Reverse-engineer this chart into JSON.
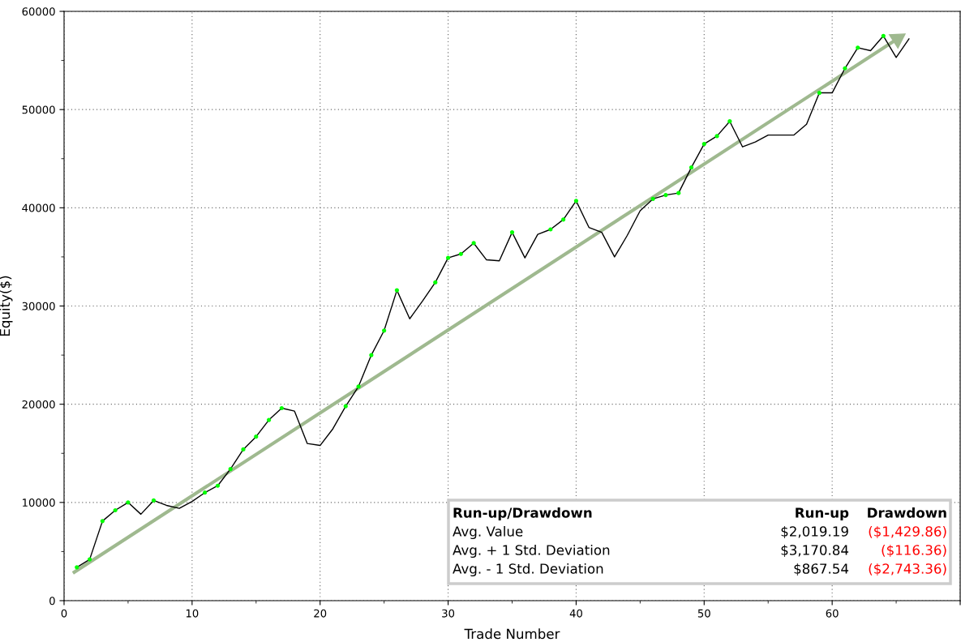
{
  "chart_data": {
    "type": "line",
    "xlabel": "Trade Number",
    "ylabel": "Equity($)",
    "xlim": [
      0,
      70
    ],
    "xticks": [
      0,
      10,
      20,
      30,
      40,
      50,
      60,
      {
        "value": 70,
        "label": null
      }
    ],
    "ylim": [
      0,
      60000
    ],
    "yticks": [
      0,
      10000,
      20000,
      30000,
      40000,
      50000,
      60000
    ],
    "grid": true,
    "legend": false,
    "marker": "none",
    "line_style": "solid",
    "series": [
      {
        "color": "#000000",
        "x": [
          1,
          2,
          3,
          4,
          5,
          6,
          7,
          8,
          9,
          10,
          11,
          12,
          13,
          14,
          15,
          16,
          17,
          18,
          19,
          20,
          21,
          22,
          23,
          24,
          25,
          26,
          27,
          28,
          29,
          30,
          31,
          32,
          33,
          34,
          35,
          36,
          37,
          38,
          39,
          40,
          41,
          42,
          43,
          44,
          45,
          46,
          47,
          48,
          49,
          50,
          51,
          52,
          53,
          54,
          55,
          56,
          57,
          58,
          59,
          60,
          61,
          62,
          63,
          64,
          65,
          66
        ],
        "values": [
          3400,
          4200,
          8100,
          9200,
          10000,
          8800,
          10200,
          9700,
          9400,
          10100,
          11000,
          11700,
          13400,
          15400,
          16700,
          18400,
          19600,
          19300,
          16000,
          15800,
          17500,
          19800,
          21800,
          25000,
          27500,
          31600,
          28700,
          30500,
          32400,
          34900,
          35300,
          36400,
          34700,
          34600,
          37500,
          34900,
          37300,
          37800,
          38800,
          40700,
          38000,
          37500,
          35000,
          37200,
          39700,
          40900,
          41300,
          41500,
          44100,
          46500,
          47300,
          48800,
          46200,
          46700,
          47400,
          47400,
          47400,
          48500,
          51700,
          51700,
          54200,
          56300,
          56000,
          57500,
          55300,
          57200
        ]
      },
      {
        "type": "scatter",
        "color": "#00ff00",
        "marker": "circle",
        "x": [
          1,
          2,
          3,
          4,
          5,
          7,
          11,
          12,
          13,
          14,
          15,
          16,
          17,
          22,
          23,
          24,
          25,
          26,
          29,
          30,
          31,
          32,
          35,
          38,
          39,
          40,
          46,
          47,
          48,
          49,
          50,
          51,
          52,
          59,
          61,
          62,
          64
        ],
        "values": [
          3400,
          4200,
          8100,
          9200,
          10000,
          10200,
          11000,
          11700,
          13400,
          15400,
          16700,
          18400,
          19600,
          19800,
          21800,
          25000,
          27500,
          31600,
          32400,
          34900,
          35300,
          36400,
          37500,
          37800,
          38800,
          40700,
          40900,
          41300,
          41500,
          44100,
          46500,
          47300,
          48800,
          51700,
          54200,
          56300,
          57500
        ]
      },
      {
        "type": "line",
        "color": "#9fb98f",
        "marker": "triangle",
        "x": [
          0.8,
          65.1
        ],
        "values": [
          2900,
          57200
        ]
      }
    ],
    "annotations": [
      "Run-up/Drawdown",
      "Run-up",
      "Drawdown",
      "Avg. Value",
      "$2,019.19",
      "($1,429.86)",
      "Avg. + 1 Std. Deviation",
      "$3,170.84",
      "($116.36)",
      "Avg. - 1 Std. Deviation",
      "$867.54",
      "($2,743.36)"
    ]
  }
}
